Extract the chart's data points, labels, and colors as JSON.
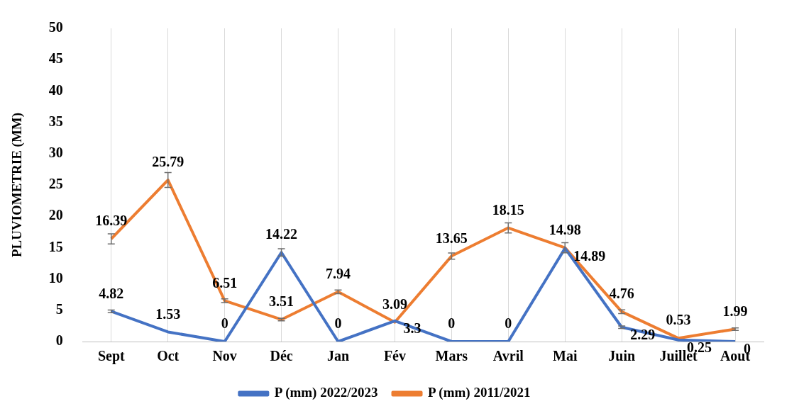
{
  "chart_data": {
    "type": "line",
    "ylabel": "PLUVIOMETRIE (MM)",
    "categories": [
      "Sept",
      "Oct",
      "Nov",
      "Déc",
      "Jan",
      "Fév",
      "Mars",
      "Avril",
      "Mai",
      "Juin",
      "Juillet",
      "Aout"
    ],
    "series": [
      {
        "name": "P (mm) 2022/2023",
        "color": "#4472c4",
        "values": [
          4.82,
          1.53,
          0,
          14.22,
          0,
          3.3,
          0,
          0,
          14.89,
          2.29,
          0.25,
          0
        ],
        "errors": [
          0.2,
          null,
          null,
          0.6,
          null,
          null,
          null,
          null,
          null,
          0.2,
          null,
          null
        ]
      },
      {
        "name": "P (mm) 2011/2021",
        "color": "#ed7d31",
        "values": [
          16.39,
          25.79,
          6.51,
          3.51,
          7.94,
          3.09,
          13.65,
          18.15,
          14.98,
          4.76,
          0.53,
          1.99
        ],
        "errors": [
          0.8,
          1.2,
          0.3,
          0.2,
          0.3,
          null,
          0.5,
          0.8,
          0.8,
          0.3,
          null,
          0.2
        ]
      }
    ],
    "ylim": [
      0,
      50
    ],
    "yticks": [
      0,
      5,
      10,
      15,
      20,
      25,
      30,
      35,
      40,
      45,
      50
    ],
    "grid": "x",
    "legend": "bottom",
    "data_labels": true,
    "marker": "none",
    "line_style": "solid"
  }
}
